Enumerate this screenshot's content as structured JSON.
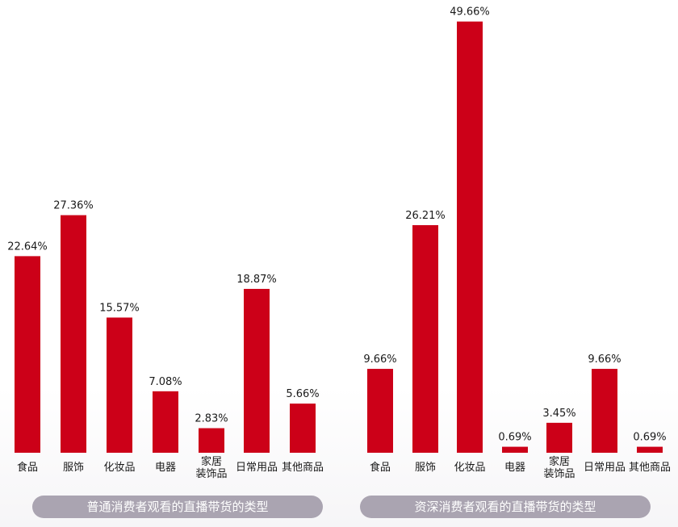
{
  "colors": {
    "bar": "#cc0018",
    "label": "#1a1a1a",
    "pill": "#aaa4b1",
    "pill_text": "#ffffff"
  },
  "chart_data": [
    {
      "type": "bar",
      "title": "普通消费者观看的直播带货的类型",
      "categories": [
        "食品",
        "服饰",
        "化妆品",
        "电器",
        "家居\n装饰品",
        "日常用品",
        "其他商品"
      ],
      "values": [
        22.64,
        27.36,
        15.57,
        7.08,
        2.83,
        18.87,
        5.66
      ],
      "value_labels": [
        "22.64%",
        "27.36%",
        "15.57%",
        "7.08%",
        "2.83%",
        "18.87%",
        "5.66%"
      ],
      "ylim": [
        0,
        50
      ],
      "grid": false,
      "legend": "none"
    },
    {
      "type": "bar",
      "title": "资深消费者观看的直播带货的类型",
      "categories": [
        "食品",
        "服饰",
        "化妆品",
        "电器",
        "家居\n装饰品",
        "日常用品",
        "其他商品"
      ],
      "values": [
        9.66,
        26.21,
        49.66,
        0.69,
        3.45,
        9.66,
        0.69
      ],
      "value_labels": [
        "9.66%",
        "26.21%",
        "49.66%",
        "0.69%",
        "3.45%",
        "9.66%",
        "0.69%"
      ],
      "ylim": [
        0,
        50
      ],
      "grid": false,
      "legend": "none"
    }
  ]
}
